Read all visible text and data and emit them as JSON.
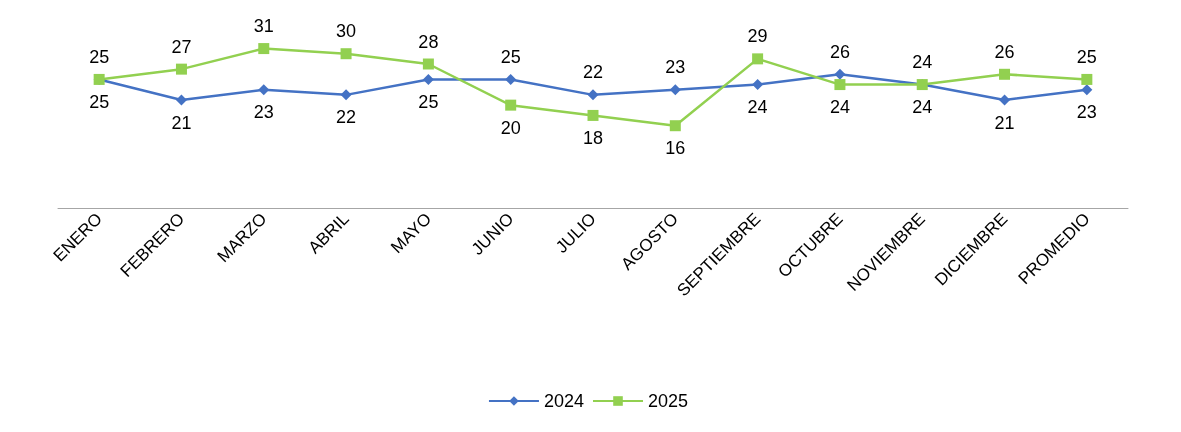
{
  "chart_data": {
    "type": "line",
    "categories": [
      "ENERO",
      "FEBRERO",
      "MARZO",
      "ABRIL",
      "MAYO",
      "JUNIO",
      "JULIO",
      "AGOSTO",
      "SEPTIEMBRE",
      "OCTUBRE",
      "NOVIEMBRE",
      "DICIEMBRE",
      "PROMEDIO"
    ],
    "series": [
      {
        "name": "2024",
        "color": "#4472c4",
        "marker": "diamond",
        "values": [
          25,
          21,
          23,
          22,
          25,
          25,
          22,
          23,
          24,
          26,
          24,
          21,
          23
        ]
      },
      {
        "name": "2025",
        "color": "#92d050",
        "marker": "square",
        "values": [
          25,
          27,
          31,
          30,
          28,
          20,
          18,
          16,
          29,
          24,
          24,
          26,
          25
        ]
      }
    ],
    "data_labels": true,
    "grid": false,
    "legend": "bottom"
  }
}
